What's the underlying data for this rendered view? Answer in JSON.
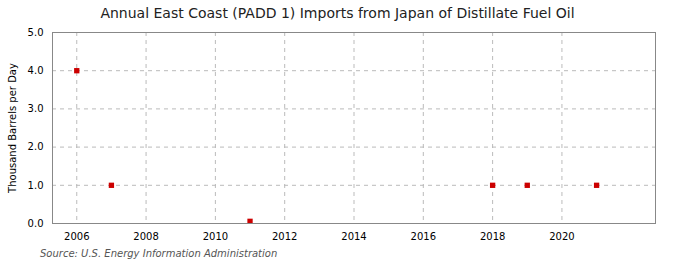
{
  "chart_data": {
    "type": "scatter",
    "title": "Annual East Coast (PADD 1) Imports from Japan of Distillate Fuel Oil",
    "ylabel": "Thousand Barrels per Day",
    "source": "Source: U.S. Energy Information Administration",
    "x": [
      2006,
      2007,
      2011,
      2018,
      2019,
      2021
    ],
    "values": [
      4.0,
      1.0,
      0.057,
      1.0,
      1.0,
      1.0
    ],
    "color": "#cc0000",
    "marker": "square",
    "xlim": [
      2005.3,
      2022.7
    ],
    "ylim": [
      0.0,
      5.0
    ],
    "xticks": [
      2006,
      2008,
      2010,
      2012,
      2014,
      2016,
      2018,
      2020
    ],
    "yticks": [
      {
        "value": 0.0,
        "label": "0.0"
      },
      {
        "value": 1.0,
        "label": "1.0"
      },
      {
        "value": 2.0,
        "label": "2.0"
      },
      {
        "value": 3.0,
        "label": "3.0"
      },
      {
        "value": 4.0,
        "label": "4.0"
      },
      {
        "value": 5.0,
        "label": "5.0"
      }
    ],
    "grid": true
  }
}
